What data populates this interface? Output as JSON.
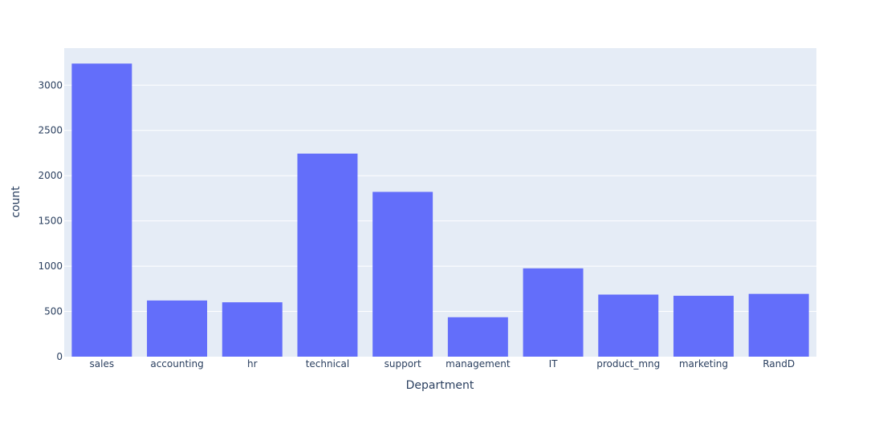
{
  "chart_data": {
    "type": "bar",
    "title": "",
    "xlabel": "Department",
    "ylabel": "count",
    "categories": [
      "sales",
      "accounting",
      "hr",
      "technical",
      "support",
      "management",
      "IT",
      "product_mng",
      "marketing",
      "RandD"
    ],
    "values": [
      3239,
      621,
      601,
      2244,
      1821,
      436,
      976,
      686,
      673,
      694
    ],
    "ylim": [
      0,
      3410
    ],
    "yticks": [
      0,
      500,
      1000,
      1500,
      2000,
      2500,
      3000
    ],
    "grid": true,
    "legend": "none"
  },
  "colors": {
    "bar": "#636efa",
    "plot_background": "#e5ecf6",
    "gridline": "#ffffff",
    "text": "#2a3f5f"
  }
}
